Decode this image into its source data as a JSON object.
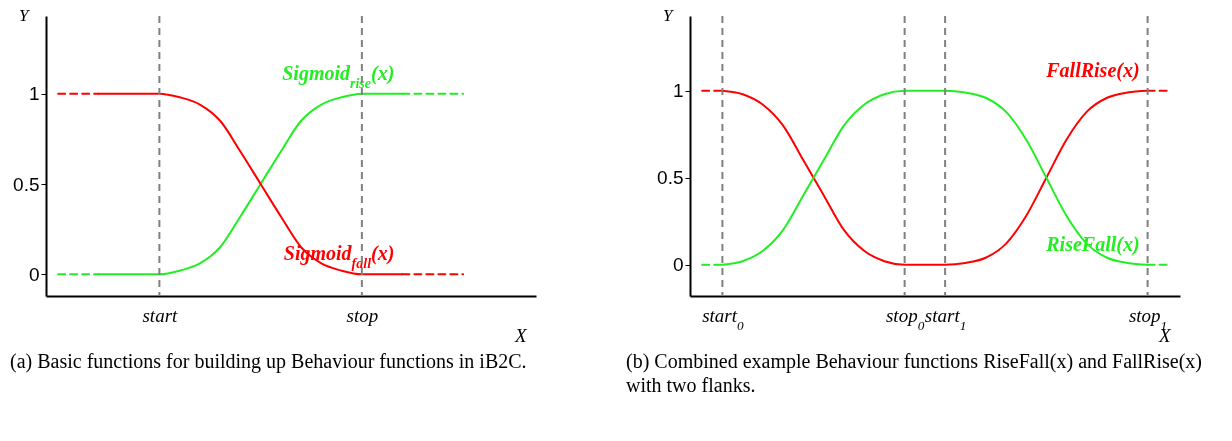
{
  "chart_data": [
    {
      "type": "line",
      "xlabel": "X",
      "ylabel": "Y",
      "categories": [
        null,
        null,
        null,
        null,
        null,
        "start",
        null,
        null,
        null,
        null,
        null,
        null,
        null,
        null,
        null,
        "stop",
        null,
        null,
        null,
        null,
        null,
        null,
        null,
        null
      ],
      "ylim": [
        -0.12,
        1.43
      ],
      "yticks": [
        0,
        0.5,
        1
      ],
      "grid": false,
      "series": [
        {
          "name": "Sigmoid$_{rise}$(x)",
          "color": "#22ee22",
          "values": [
            null,
            null,
            0,
            0,
            0,
            0,
            0.02,
            0.06,
            0.15,
            0.32,
            0.5,
            0.68,
            0.85,
            0.94,
            0.98,
            1,
            1,
            1,
            null,
            null,
            null,
            null,
            null,
            null
          ]
        },
        {
          "color": "#22ee22",
          "line_style": "dashed",
          "values": [
            0,
            0,
            0,
            null,
            null,
            null,
            null,
            null,
            null,
            null,
            null,
            null,
            null,
            null,
            null,
            null,
            null,
            null,
            null,
            null,
            null,
            null,
            null,
            null
          ]
        },
        {
          "color": "#22ee22",
          "line_style": "dashed",
          "values": [
            null,
            null,
            null,
            null,
            null,
            null,
            null,
            null,
            null,
            null,
            null,
            null,
            null,
            null,
            null,
            null,
            null,
            1,
            1,
            1,
            1,
            null,
            null,
            null
          ]
        },
        {
          "name": "Sigmoid$_{fall}$(x)",
          "color": "#ff0000",
          "values": [
            null,
            null,
            1,
            1,
            1,
            1,
            0.98,
            0.94,
            0.85,
            0.68,
            0.5,
            0.32,
            0.15,
            0.06,
            0.02,
            0,
            0,
            0,
            null,
            null,
            null,
            null,
            null,
            null
          ]
        },
        {
          "color": "#ff0000",
          "line_style": "dashed",
          "values": [
            1,
            1,
            1,
            null,
            null,
            null,
            null,
            null,
            null,
            null,
            null,
            null,
            null,
            null,
            null,
            null,
            null,
            null,
            null,
            null,
            null,
            null,
            null,
            null
          ]
        },
        {
          "color": "#ff0000",
          "line_style": "dashed",
          "values": [
            null,
            null,
            null,
            null,
            null,
            null,
            null,
            null,
            null,
            null,
            null,
            null,
            null,
            null,
            null,
            null,
            null,
            0,
            0,
            0,
            0,
            null,
            null,
            null
          ]
        }
      ],
      "ref_lines": [
        {
          "axis": "x",
          "value": "start",
          "color": "#808080",
          "line_style": "dashed"
        },
        {
          "axis": "x",
          "value": "stop",
          "color": "#808080",
          "line_style": "dashed"
        }
      ],
      "annotations": [
        "(a) Basic functions for building up Behaviour functions in iB2C."
      ]
    },
    {
      "type": "line",
      "xlabel": "X",
      "ylabel": "Y",
      "categories": [
        null,
        "start$_{0}$",
        null,
        null,
        null,
        null,
        null,
        null,
        null,
        null,
        "stop$_{0}$",
        null,
        "start$_{1}$",
        null,
        null,
        null,
        null,
        null,
        null,
        null,
        null,
        null,
        "stop$_{1}$",
        null
      ],
      "ylim": [
        -0.18,
        1.43
      ],
      "yticks": [
        0,
        0.5,
        1
      ],
      "grid": false,
      "series": [
        {
          "name": "FallRise(x)",
          "color": "#ff0000",
          "values": [
            null,
            1,
            0.98,
            0.92,
            0.8,
            0.6,
            0.4,
            0.2,
            0.08,
            0.02,
            0,
            0,
            0,
            0.01,
            0.04,
            0.12,
            0.28,
            0.5,
            0.72,
            0.88,
            0.96,
            0.99,
            1,
            null
          ]
        },
        {
          "color": "#ff0000",
          "line_style": "dashed",
          "values": [
            1,
            1,
            null,
            null,
            null,
            null,
            null,
            null,
            null,
            null,
            null,
            null,
            null,
            null,
            null,
            null,
            null,
            null,
            null,
            null,
            null,
            null,
            null,
            null
          ]
        },
        {
          "color": "#ff0000",
          "line_style": "dashed",
          "values": [
            null,
            null,
            null,
            null,
            null,
            null,
            null,
            null,
            null,
            null,
            null,
            null,
            null,
            null,
            null,
            null,
            null,
            null,
            null,
            null,
            null,
            null,
            1,
            1
          ]
        },
        {
          "name": "RiseFall(x)",
          "color": "#22ee22",
          "values": [
            null,
            0,
            0.02,
            0.08,
            0.2,
            0.4,
            0.6,
            0.8,
            0.92,
            0.98,
            1,
            1,
            1,
            0.99,
            0.96,
            0.88,
            0.72,
            0.5,
            0.28,
            0.12,
            0.04,
            0.01,
            0,
            null
          ]
        },
        {
          "color": "#22ee22",
          "line_style": "dashed",
          "values": [
            0,
            0,
            null,
            null,
            null,
            null,
            null,
            null,
            null,
            null,
            null,
            null,
            null,
            null,
            null,
            null,
            null,
            null,
            null,
            null,
            null,
            null,
            null,
            null
          ]
        },
        {
          "color": "#22ee22",
          "line_style": "dashed",
          "values": [
            null,
            null,
            null,
            null,
            null,
            null,
            null,
            null,
            null,
            null,
            null,
            null,
            null,
            null,
            null,
            null,
            null,
            null,
            null,
            null,
            null,
            null,
            0,
            0
          ]
        }
      ],
      "ref_lines": [
        {
          "axis": "x",
          "value": "start$_{0}$",
          "color": "#808080",
          "line_style": "dashed"
        },
        {
          "axis": "x",
          "value": "stop$_{0}$",
          "color": "#808080",
          "line_style": "dashed"
        },
        {
          "axis": "x",
          "value": "start$_{1}$",
          "color": "#808080",
          "line_style": "dashed"
        },
        {
          "axis": "x",
          "value": "stop$_{1}$",
          "color": "#808080",
          "line_style": "dashed"
        }
      ],
      "annotations": [
        "(b) Combined example Behaviour functions RiseFall(x) and FallRise(x) with two flanks."
      ]
    }
  ]
}
